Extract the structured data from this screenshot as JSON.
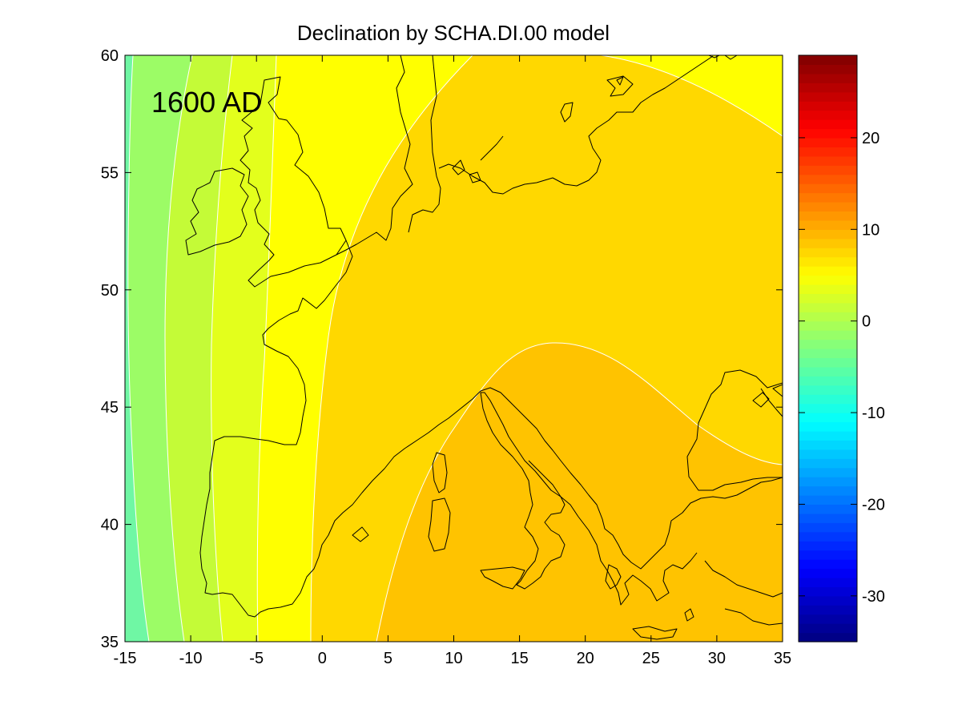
{
  "chart_data": {
    "type": "heatmap",
    "title": "Declination by SCHA.DI.00 model",
    "annotation": "1600 AD",
    "xlabel": "",
    "ylabel": "",
    "xlim": [
      -15,
      35
    ],
    "ylim": [
      35,
      60
    ],
    "x_ticks": [
      -15,
      -10,
      -5,
      0,
      5,
      10,
      15,
      20,
      25,
      30,
      35
    ],
    "y_ticks": [
      35,
      40,
      45,
      50,
      55,
      60
    ],
    "colorbar": {
      "range": [
        -35,
        29
      ],
      "ticks": [
        -30,
        -20,
        -10,
        0,
        10,
        20
      ],
      "colormap": "jet"
    },
    "contour_levels": [
      -4,
      -2,
      0,
      2,
      4,
      6,
      8,
      10
    ],
    "field_description_levels_colors": {
      "-4": "#6ff7a4",
      "-2": "#9cfc66",
      "0": "#c4fb37",
      "2": "#e3ff1c",
      "4": "#ffff00",
      "6": "#ffd800",
      "8": "#ffc300"
    },
    "grid": false,
    "coastline_color": "#000000"
  }
}
